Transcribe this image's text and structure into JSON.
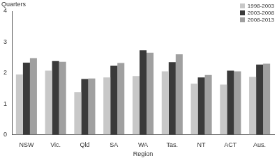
{
  "chart_data": {
    "type": "bar",
    "y_label": "Quarters",
    "x_label": "Region",
    "categories": [
      "NSW",
      "Vic.",
      "Qld",
      "SA",
      "WA",
      "Tas.",
      "NT",
      "ACT",
      "Aus."
    ],
    "series": [
      {
        "name": "1998-2003",
        "color": "#c8c8c8",
        "values": [
          1.95,
          2.07,
          1.38,
          1.85,
          1.9,
          2.05,
          1.65,
          1.62,
          1.87
        ]
      },
      {
        "name": "2003-2008",
        "color": "#3a3a3a",
        "values": [
          2.33,
          2.38,
          1.8,
          2.23,
          2.73,
          2.35,
          1.85,
          2.07,
          2.27
        ]
      },
      {
        "name": "2008-2013",
        "color": "#a0a0a0",
        "values": [
          2.48,
          2.36,
          1.82,
          2.32,
          2.65,
          2.6,
          1.93,
          2.05,
          2.3
        ]
      }
    ],
    "ylim": [
      0,
      4
    ],
    "yticks": [
      0,
      1,
      2,
      3,
      4
    ],
    "grid": false,
    "legend": "top-right"
  }
}
